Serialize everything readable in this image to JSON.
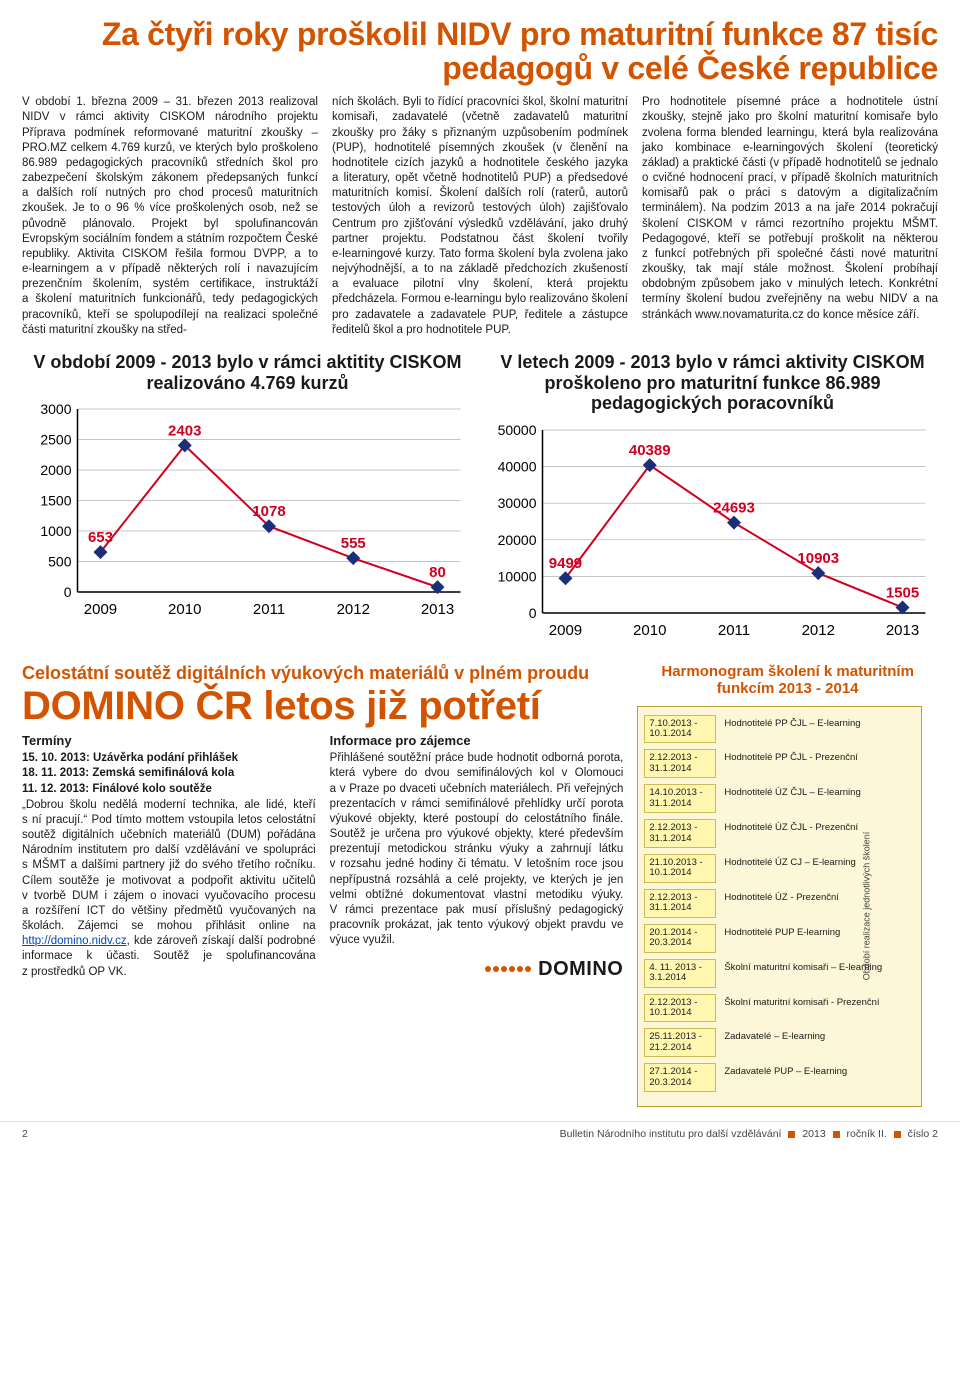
{
  "headline": "Za čtyři roky proškolil NIDV pro maturitní funkce 87 tisíc pedagogů v celé České republice",
  "article": {
    "col1": "V období 1. března 2009 – 31. březen 2013 realizoval NIDV v rámci aktivity CISKOM národního projektu Příprava podmínek reformované maturitní zkoušky – PRO.MZ celkem 4.769 kurzů, ve kterých bylo proškoleno 86.989 pedagogických pracovníků středních škol pro zabezpečení školským zákonem předepsaných funkcí a dalších rolí nutných pro chod procesů maturitních zkoušek. Je to o 96 % více proškolených osob, než se původně plánovalo. Projekt byl spolufinancován Evropským sociálním fondem a státním rozpočtem České republiky.\nAktivita CISKOM řešila formou DVPP, a to e‑learningem a v případě některých rolí i navazujícím prezenčním školením, systém certifikace, instruktáží a školení maturitních funkcionářů, tedy pedagogických pracovníků, kteří se spolupodílejí na realizaci společné části maturitní zkoušky na střed-",
    "col2": "ních školách. Byli to řídící pracovníci škol, školní maturitní komisaři, zadavatelé (včetně zadavatelů maturitní zkoušky pro žáky s přiznaným uzpůsobením podmínek (PUP), hodnotitelé písemných zkoušek (v členění na hodnotitele cizích jazyků a hodnotitele českého jazyka a literatury, opět včetně hodnotitelů PUP) a předsedové maturitních komisí. Školení dalších rolí (raterů, autorů testových úloh a revizorů testových úloh) zajišťovalo Centrum pro zjišťování výsledků vzdělávání, jako druhý partner projektu.\nPodstatnou část školení tvořily e‑learningové kurzy. Tato forma školení byla zvolena jako nejvýhodnější, a to na základě předchozích zkušeností a evaluace pilotní vlny školení, která projektu předcházela. Formou e‑learningu bylo realizováno školení pro zadavatele a zadavatele PUP, ředitele a zástupce ředitelů škol a pro hodnotitele PUP.",
    "col3": "Pro hodnotitele písemné práce a hodnotitele ústní zkoušky, stejně jako pro školní maturitní komisaře bylo zvolena forma blended learningu, která byla realizována jako kombinace e‑learningových školení (teoretický základ) a praktické části (v případě hodnotitelů se jednalo o cvičné hodnocení prací, v případě školních maturitních komisařů pak o práci s datovým a digitalizačním terminálem).\nNa podzim 2013 a na jaře 2014 pokračují školení CISKOM v rámci rezortního projektu MŠMT. Pedagogové, kteří se potřebují proškolit na některou z funkcí potřebných při společné části nové maturitní zkoušky, tak mají stále možnost. Školení probíhají obdobným způsobem jako v minulých letech. Konkrétní termíny školení budou zveřejněny na webu NIDV a na stránkách www.novamaturita.cz do konce měsíce září."
  },
  "chart1": {
    "type": "line",
    "title": "V období 2009 - 2013 bylo v rámci aktitity CISKOM realizováno 4.769 kurzů",
    "x_labels": [
      "2009",
      "2010",
      "2011",
      "2012",
      "2013"
    ],
    "values": [
      653,
      2403,
      1078,
      555,
      80
    ],
    "ylim": [
      0,
      3000
    ],
    "ytick_step": 500,
    "line_color": "#d00020",
    "marker_color": "#1a2f7a",
    "marker_size": 7,
    "line_width": 2,
    "label_color": "#d00020",
    "grid_color": "#b0b0b0",
    "axis_color": "#000000",
    "tick_fontsize": 14,
    "label_fontsize": 15,
    "title_fontsize": 18,
    "background_color": "#ffffff"
  },
  "chart2": {
    "type": "line",
    "title": "V letech 2009 - 2013 bylo v rámci aktivity CISKOM proškoleno pro maturitní funkce 86.989 pedagogických poracovníků",
    "x_labels": [
      "2009",
      "2010",
      "2011",
      "2012",
      "2013"
    ],
    "values": [
      9499,
      40389,
      24693,
      10903,
      1505
    ],
    "ylim": [
      0,
      50000
    ],
    "ytick_step": 10000,
    "line_color": "#d00020",
    "marker_color": "#1a2f7a",
    "marker_size": 7,
    "line_width": 2,
    "label_color": "#d00020",
    "grid_color": "#b0b0b0",
    "axis_color": "#000000",
    "tick_fontsize": 14,
    "label_fontsize": 15,
    "title_fontsize": 18,
    "background_color": "#ffffff"
  },
  "domino": {
    "subhead": "Celostátní soutěž digitálních výukových materiálů v plném proudu",
    "title": "DOMINO ČR letos již potřetí",
    "terms_head": "Termíny",
    "terms": "15. 10. 2013: Uzávěrka podání přihlášek\n18. 11. 2013: Zemská semifinálová kola\n11. 12. 2013: Finálové kolo soutěže",
    "col1_rest": "„Dobrou školu nedělá moderní technika, ale lidé, kteří s ní pracují.“ Pod tímto mottem vstoupila letos celostátní soutěž digitálních učebních materiálů (DUM) pořádána Národním institutem pro další vzdělávání ve spolupráci s MŠMT a dalšími partnery již do svého třetího ročníku. Cílem soutěže je motivovat a podpořit aktivitu učitelů v tvorbě DUM i zájem o inovaci vyučovacího procesu a rozšíření ICT do většiny předmětů vyučovaných na školách. Zájemci se mohou přihlásit online na ",
    "link_text": "http://domino.nidv.cz",
    "col1_after": ", kde zároveň získají další podrobné informace k účasti. Soutěž je spolufinancována z prostředků OP VK.",
    "info_head": "Informace pro zájemce",
    "col2": "Přihlášené soutěžní práce bude hodnotit odborná porota, která vybere do dvou semifinálových kol v Olomouci a v Praze po dvaceti učebních materiálech. Při veřejných prezentacích v rámci semifinálové přehlídky určí porota výukové objekty, které postoupí do celostátního finále. Soutěž je určena pro výukové objekty, které především prezentují metodickou stránku výuky a zahrnují látku v rozsahu jedné hodiny či tématu. V letošním roce jsou nepřípustná rozsáhlá a celé projekty, ve kterých je jen velmi obtížné dokumentovat vlastní metodiku výuky. V rámci prezentace pak musí příslušný pedagogický pracovník prokázat, jak tento výukový objekt pravdu ve výuce využil.",
    "logo": "DOMINO"
  },
  "harmonogram": {
    "title": "Harmonogram školení k maturitním funkcím 2013 - 2014",
    "side_label": "Období realizace jednotlivých školení",
    "items": [
      {
        "date": "7.10.2013 - 10.1.2014",
        "label": "Hodnotitelé PP ČJL – E-learning"
      },
      {
        "date": "2.12.2013 - 31.1.2014",
        "label": "Hodnotitelé PP ČJL - Prezenční"
      },
      {
        "date": "14.10.2013 - 31.1.2014",
        "label": "Hodnotitelé ÚZ ČJL – E-learning"
      },
      {
        "date": "2.12.2013 - 31.1.2014",
        "label": "Hodnotitelé ÚZ ČJL - Prezenční"
      },
      {
        "date": "21.10.2013 - 10.1.2014",
        "label": "Hodnotitelé ÚZ CJ – E-learning"
      },
      {
        "date": "2.12.2013 - 31.1.2014",
        "label": "Hodnotitelé ÚZ - Prezenční"
      },
      {
        "date": "20.1.2014 - 20.3.2014",
        "label": "Hodnotitelé PUP E-learning"
      },
      {
        "date": "4. 11. 2013 - 3.1.2014",
        "label": "Školní maturitní komisaři – E-learning"
      },
      {
        "date": "2.12.2013 - 10.1.2014",
        "label": "Školní maturitní komisaři - Prezenční"
      },
      {
        "date": "25.11.2013 - 21.2.2014",
        "label": "Zadavatelé – E-learning"
      },
      {
        "date": "27.1.2014 - 20.3.2014",
        "label": "Zadavatelé PUP – E-learning"
      }
    ]
  },
  "footer": {
    "page": "2",
    "bulletin": "Bulletin Národního institutu pro další vzdělávání",
    "year": "2013",
    "rocnik": "ročník II.",
    "cislo": "číslo 2"
  }
}
